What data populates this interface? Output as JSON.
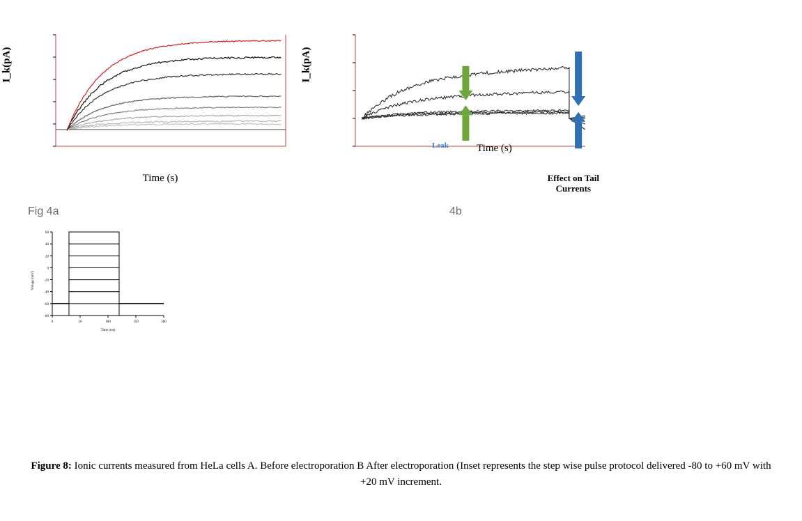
{
  "chart_a": {
    "type": "line",
    "ylabel": "I_k(pA)",
    "xlabel": "Time (s)",
    "axis_color": "#c04040",
    "traces": [
      {
        "color": "#c0c0c0",
        "amp": 10,
        "offset": 62,
        "noise": 2
      },
      {
        "color": "#b8b8b8",
        "amp": 15,
        "offset": 60,
        "noise": 2
      },
      {
        "color": "#a8a8a8",
        "amp": 25,
        "offset": 58,
        "noise": 1.5
      },
      {
        "color": "#808080",
        "amp": 40,
        "offset": 55,
        "noise": 1.5
      },
      {
        "color": "#606060",
        "amp": 60,
        "offset": 50,
        "noise": 1.5
      },
      {
        "color": "#303030",
        "amp": 100,
        "offset": 45,
        "noise": 2
      },
      {
        "color": "#101010",
        "amp": 130,
        "offset": 40,
        "noise": 2.5
      },
      {
        "color": "#d02020",
        "amp": 160,
        "offset": 35,
        "noise": 1.5
      }
    ],
    "ylim": [
      -100,
      400
    ],
    "fig_label": "Fig 4a"
  },
  "chart_b": {
    "type": "line",
    "ylabel": "I_k(pA)",
    "xlabel": "Time (s)",
    "axis_color": "#c04040",
    "traces": [
      {
        "color": "#303030",
        "amp": 10,
        "offset": 130,
        "noise": 3
      },
      {
        "color": "#303030",
        "amp": 12,
        "offset": 128,
        "noise": 3
      },
      {
        "color": "#303030",
        "amp": 15,
        "offset": 125,
        "noise": 3
      },
      {
        "color": "#303030",
        "amp": 50,
        "offset": 95,
        "noise": 4
      },
      {
        "color": "#303030",
        "amp": 95,
        "offset": 55,
        "noise": 5
      }
    ],
    "effect_label_l1": "Effect on Tail",
    "effect_label_l2": "Currents",
    "leak_label": "Leak",
    "sub_label": "4b",
    "arrows": {
      "green": {
        "color": "#6fa83a"
      },
      "blue": {
        "color": "#2f6fb5"
      }
    }
  },
  "protocol": {
    "type": "step",
    "ylabel": "Voltage (mV)",
    "xlabel": "Time (ms)",
    "axis_color": "#000000",
    "ylim": [
      -80,
      60
    ],
    "step": 20,
    "xstart": 30,
    "xend": 120,
    "xmax": 200,
    "baseline": -60,
    "levels": [
      -80,
      -60,
      -40,
      -20,
      0,
      20,
      40,
      60
    ]
  },
  "caption": {
    "prefix": "Figure 8:",
    "text": " Ionic currents measured from HeLa cells A. Before electroporation B After electroporation (Inset represents the step wise pulse protocol delivered -80 to +60 mV with +20 mV increment."
  }
}
